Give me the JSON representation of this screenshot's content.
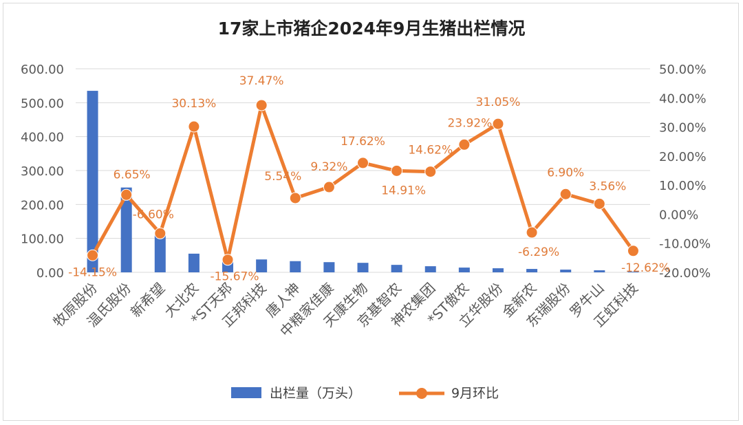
{
  "chart_data": {
    "type": "bar+line",
    "title": "17家上市猪企2024年9月生猪出栏情况",
    "categories": [
      "牧原股份",
      "温氏股份",
      "新希望",
      "大北农",
      "*ST天邦",
      "正邦科技",
      "唐人神",
      "中粮家佳康",
      "天康生物",
      "京基智农",
      "神农集团",
      "*ST傲农",
      "立华股份",
      "金新农",
      "东瑞股份",
      "罗牛山",
      "正虹科技"
    ],
    "series": [
      {
        "name": "出栏量（万头）",
        "type": "bar",
        "axis": "left",
        "color": "#4472c4",
        "values": [
          535,
          250,
          120,
          55,
          38,
          38,
          33,
          30,
          28,
          22,
          18,
          14,
          12,
          10,
          8,
          6,
          2
        ]
      },
      {
        "name": "9月环比",
        "type": "line",
        "axis": "right",
        "color": "#ed7d31",
        "values": [
          -14.15,
          6.65,
          -6.6,
          30.13,
          -15.67,
          37.47,
          5.54,
          9.32,
          17.62,
          14.91,
          14.62,
          23.92,
          31.05,
          -6.29,
          6.9,
          3.56,
          -12.62
        ],
        "labels": [
          "-14.15%",
          "6.65%",
          "-6.60%",
          "30.13%",
          "-15.67%",
          "37.47%",
          "5.54%",
          "9.32%",
          "17.62%",
          "14.91%",
          "14.62%",
          "23.92%",
          "31.05%",
          "-6.29%",
          "6.90%",
          "3.56%",
          "-12.62%"
        ]
      }
    ],
    "left_axis": {
      "min": 0,
      "max": 600,
      "ticks": [
        "0.00",
        "100.00",
        "200.00",
        "300.00",
        "400.00",
        "500.00",
        "600.00"
      ]
    },
    "right_axis": {
      "min": -20,
      "max": 50,
      "ticks": [
        "-20.00%",
        "-10.00%",
        "0.00%",
        "10.00%",
        "20.00%",
        "30.00%",
        "40.00%",
        "50.00%"
      ]
    },
    "grid": true,
    "legend_position": "bottom"
  }
}
